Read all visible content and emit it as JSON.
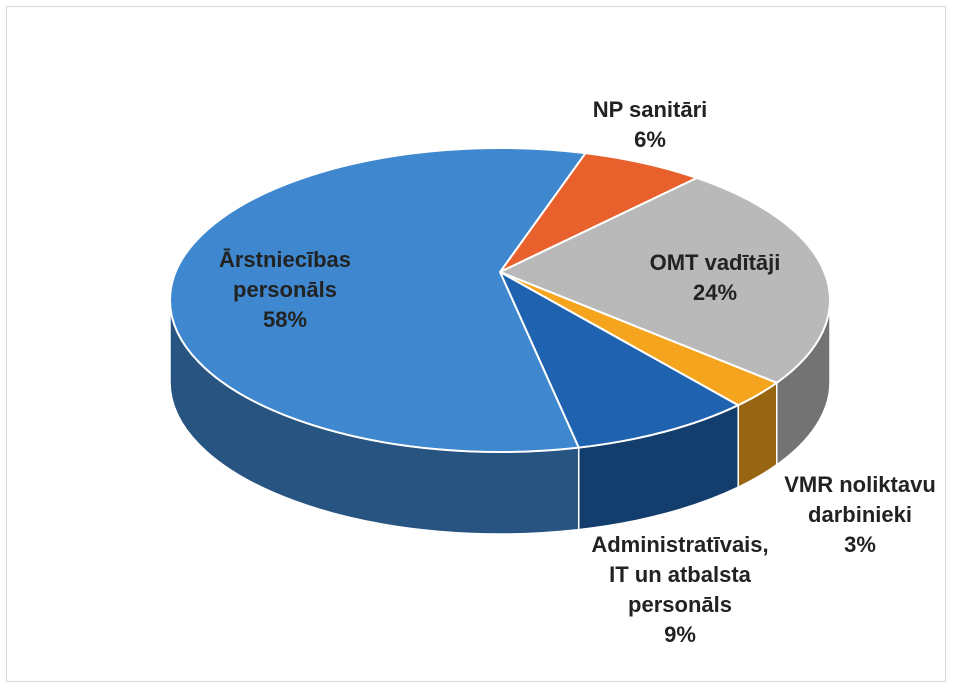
{
  "chart_data": {
    "type": "pie",
    "categories": [
      "NP sanitāri",
      "OMT vadītāji",
      "VMR noliktavu darbinieki",
      "Administratīvais, IT un atbalsta personāls",
      "Ārstniecības personāls"
    ],
    "values": [
      6,
      24,
      3,
      9,
      58
    ],
    "value_labels": [
      "6%",
      "24%",
      "3%",
      "9%",
      "58%"
    ],
    "colors": [
      "#e8602c",
      "#b9b9b9",
      "#f5a41e",
      "#1f62b0",
      "#3f88cf"
    ]
  }
}
